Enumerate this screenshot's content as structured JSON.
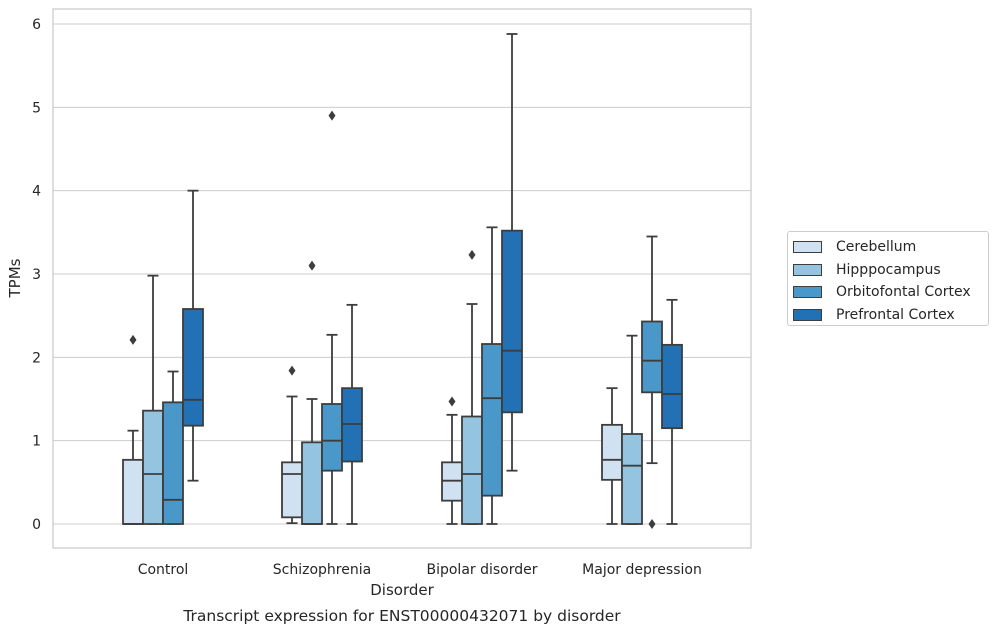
{
  "chart_data": {
    "type": "box",
    "title": "Transcript expression for ENST00000432071 by disorder",
    "xlabel": "Disorder",
    "ylabel": "TPMs",
    "ylim": [
      -0.28,
      6.17
    ],
    "yticks": [
      0,
      1,
      2,
      3,
      4,
      5,
      6
    ],
    "categories": [
      "Control",
      "Schizophrenia",
      "Bipolar disorder",
      "Major depression"
    ],
    "grid": "horizontal",
    "legend_position": "right",
    "series": [
      {
        "name": "Cerebellum",
        "color": "#d0e1f2",
        "boxes": [
          {
            "whislo": 0,
            "q1": 0,
            "med": 0,
            "q3": 0.77,
            "whishi": 1.12,
            "fliers": [
              2.21
            ]
          },
          {
            "whislo": 0.01,
            "q1": 0.08,
            "med": 0.6,
            "q3": 0.74,
            "whishi": 1.53,
            "fliers": [
              1.84
            ]
          },
          {
            "whislo": 0,
            "q1": 0.28,
            "med": 0.52,
            "q3": 0.74,
            "whishi": 1.31,
            "fliers": [
              1.47
            ]
          },
          {
            "whislo": 0,
            "q1": 0.53,
            "med": 0.77,
            "q3": 1.19,
            "whishi": 1.63,
            "fliers": []
          }
        ]
      },
      {
        "name": "Hipppocampus",
        "color": "#94c4df",
        "boxes": [
          {
            "whislo": 0,
            "q1": 0,
            "med": 0.6,
            "q3": 1.36,
            "whishi": 2.98,
            "fliers": []
          },
          {
            "whislo": 0,
            "q1": 0,
            "med": 0,
            "q3": 0.98,
            "whishi": 1.5,
            "fliers": [
              3.1
            ]
          },
          {
            "whislo": 0,
            "q1": 0,
            "med": 0.6,
            "q3": 1.29,
            "whishi": 2.64,
            "fliers": [
              3.23
            ]
          },
          {
            "whislo": 0,
            "q1": 0,
            "med": 0.7,
            "q3": 1.08,
            "whishi": 2.26,
            "fliers": []
          }
        ]
      },
      {
        "name": "Orbitofontal Cortex",
        "color": "#4a98c9",
        "boxes": [
          {
            "whislo": 0,
            "q1": 0,
            "med": 0.29,
            "q3": 1.46,
            "whishi": 1.83,
            "fliers": []
          },
          {
            "whislo": 0,
            "q1": 0.64,
            "med": 1.0,
            "q3": 1.44,
            "whishi": 2.27,
            "fliers": [
              4.9
            ]
          },
          {
            "whislo": 0,
            "q1": 0.34,
            "med": 1.51,
            "q3": 2.16,
            "whishi": 3.56,
            "fliers": []
          },
          {
            "whislo": 0.73,
            "q1": 1.58,
            "med": 1.96,
            "q3": 2.43,
            "whishi": 3.45,
            "fliers": [
              0
            ]
          }
        ]
      },
      {
        "name": "Prefrontal Cortex",
        "color": "#2271b5",
        "boxes": [
          {
            "whislo": 0.52,
            "q1": 1.18,
            "med": 1.49,
            "q3": 2.58,
            "whishi": 4.0,
            "fliers": []
          },
          {
            "whislo": 0,
            "q1": 0.75,
            "med": 1.2,
            "q3": 1.63,
            "whishi": 2.63,
            "fliers": []
          },
          {
            "whislo": 0.64,
            "q1": 1.34,
            "med": 2.08,
            "q3": 3.52,
            "whishi": 5.88,
            "fliers": []
          },
          {
            "whislo": 0,
            "q1": 1.15,
            "med": 1.56,
            "q3": 2.15,
            "whishi": 2.69,
            "fliers": []
          }
        ]
      }
    ]
  }
}
